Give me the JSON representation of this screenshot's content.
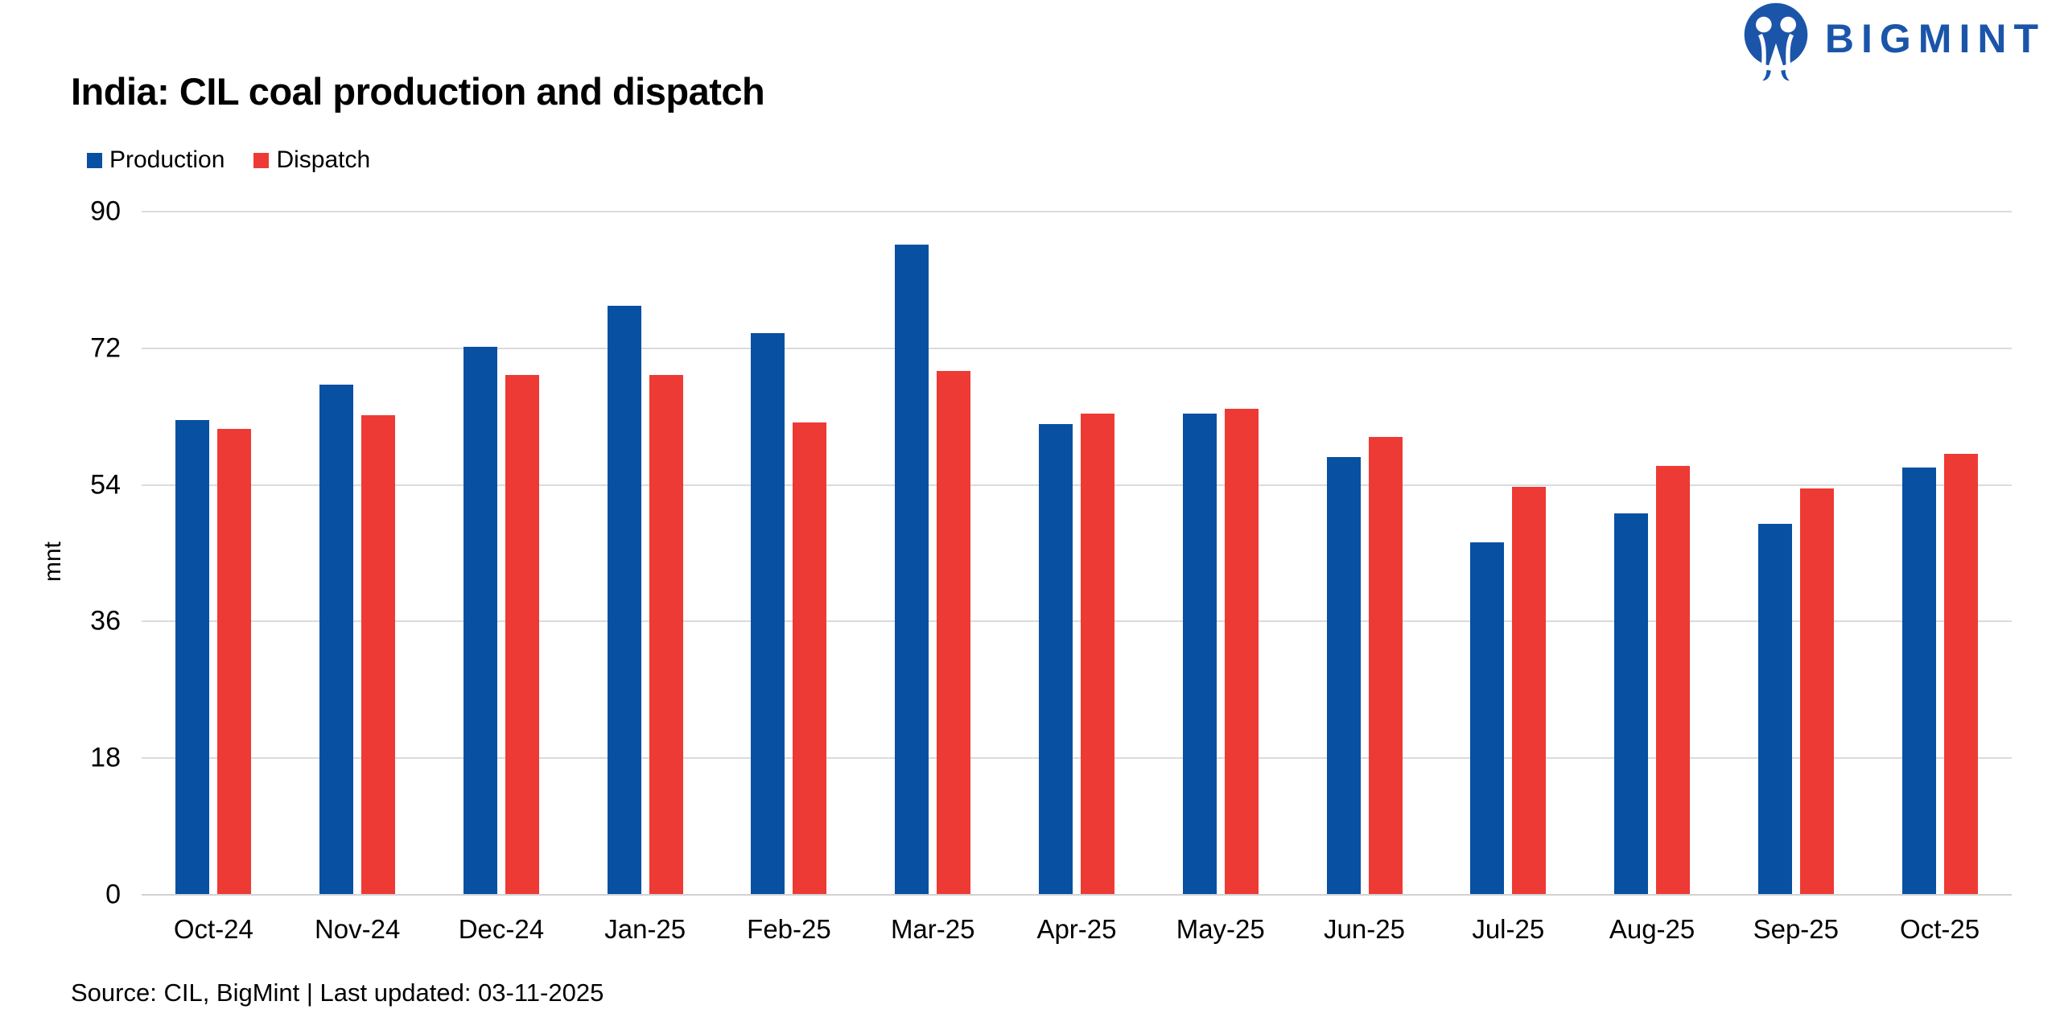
{
  "brand": {
    "name": "BIGMINT",
    "color": "#1B55A9"
  },
  "header": {
    "title": "India: CIL coal production and dispatch"
  },
  "legend": {
    "items": [
      {
        "label": "Production",
        "color": "#0750A2"
      },
      {
        "label": "Dispatch",
        "color": "#EE3A34"
      }
    ]
  },
  "footer": {
    "text": "Source: CIL, BigMint | Last updated: 03-11-2025"
  },
  "chart_data": {
    "type": "bar",
    "title": "India: CIL coal production and dispatch",
    "categories": [
      "Oct-24",
      "Nov-24",
      "Dec-24",
      "Jan-25",
      "Feb-25",
      "Mar-25",
      "Apr-25",
      "May-25",
      "Jun-25",
      "Jul-25",
      "Aug-25",
      "Sep-25",
      "Oct-25"
    ],
    "series": [
      {
        "name": "Production",
        "color": "#0750A2",
        "values": [
          62.5,
          67.2,
          72.2,
          77.6,
          74.0,
          85.7,
          62.0,
          63.4,
          57.7,
          46.4,
          50.3,
          48.9,
          56.3
        ]
      },
      {
        "name": "Dispatch",
        "color": "#EE3A34",
        "values": [
          61.4,
          63.2,
          68.5,
          68.5,
          62.2,
          69.0,
          63.4,
          64.0,
          60.3,
          53.7,
          56.5,
          53.5,
          58.1
        ]
      }
    ],
    "xlabel": "",
    "ylabel": "mnt",
    "ylim": [
      0,
      90
    ],
    "yticks": [
      0,
      18,
      36,
      54,
      72,
      90
    ],
    "grid": true,
    "legend_position": "top-left",
    "gridline_color": "#DBDBDB",
    "axis_line_color": "#D2D2D2"
  }
}
